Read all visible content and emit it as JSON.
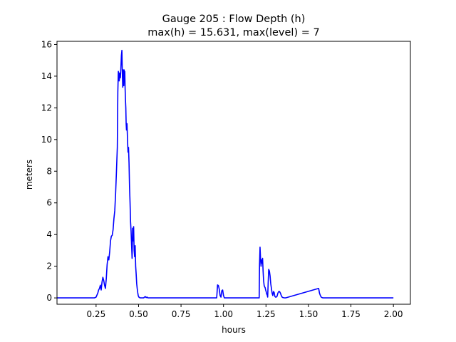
{
  "chart_data": {
    "type": "line",
    "title": "Gauge 205 : Flow Depth (h)",
    "subtitle": "max(h) =  15.631,    max(level) = 7",
    "xlabel": "hours",
    "ylabel": "meters",
    "xlim": [
      0.02,
      2.1
    ],
    "ylim": [
      -0.4,
      16.2
    ],
    "xticks": [
      0.25,
      0.5,
      0.75,
      1.0,
      1.25,
      1.5,
      1.75,
      2.0
    ],
    "xtick_labels": [
      "0.25",
      "0.50",
      "0.75",
      "1.00",
      "1.25",
      "1.50",
      "1.75",
      "2.00"
    ],
    "yticks": [
      0,
      2,
      4,
      6,
      8,
      10,
      12,
      14,
      16
    ],
    "ytick_labels": [
      "0",
      "2",
      "4",
      "6",
      "8",
      "10",
      "12",
      "14",
      "16"
    ],
    "grid": false,
    "colors": {
      "line": "#0000ff"
    },
    "series": [
      {
        "x": [
          0.02,
          0.24,
          0.25,
          0.26,
          0.265,
          0.27,
          0.275,
          0.28,
          0.285,
          0.29,
          0.295,
          0.3,
          0.305,
          0.31,
          0.315,
          0.32,
          0.325,
          0.33,
          0.335,
          0.34,
          0.345,
          0.35,
          0.355,
          0.36,
          0.365,
          0.37,
          0.375,
          0.378,
          0.381,
          0.384,
          0.386,
          0.388,
          0.39,
          0.393,
          0.396,
          0.399,
          0.402,
          0.405,
          0.407,
          0.409,
          0.411,
          0.413,
          0.415,
          0.417,
          0.419,
          0.421,
          0.423,
          0.425,
          0.427,
          0.429,
          0.432,
          0.435,
          0.438,
          0.441,
          0.444,
          0.447,
          0.45,
          0.453,
          0.456,
          0.459,
          0.462,
          0.465,
          0.468,
          0.471,
          0.474,
          0.477,
          0.48,
          0.483,
          0.486,
          0.489,
          0.492,
          0.495,
          0.498,
          0.502,
          0.506,
          0.51,
          0.52,
          0.53,
          0.535,
          0.54,
          0.545,
          0.55,
          0.555,
          0.96,
          0.965,
          0.97,
          0.975,
          0.98,
          0.985,
          0.99,
          0.995,
          1.0,
          1.005,
          1.21,
          1.212,
          1.215,
          1.218,
          1.221,
          1.224,
          1.227,
          1.23,
          1.233,
          1.236,
          1.239,
          1.242,
          1.245,
          1.248,
          1.251,
          1.254,
          1.257,
          1.26,
          1.263,
          1.266,
          1.27,
          1.274,
          1.278,
          1.282,
          1.286,
          1.29,
          1.294,
          1.298,
          1.302,
          1.306,
          1.31,
          1.315,
          1.32,
          1.325,
          1.33,
          1.335,
          1.34,
          1.345,
          1.35,
          1.355,
          1.36,
          1.365,
          1.56,
          1.565,
          1.57,
          1.575,
          1.58,
          1.585,
          2.0
        ],
        "y": [
          0,
          0,
          0.05,
          0.3,
          0.5,
          0.6,
          0.8,
          0.5,
          1.0,
          1.3,
          1.1,
          0.8,
          0.6,
          1.2,
          2.1,
          2.6,
          2.4,
          2.9,
          3.6,
          3.9,
          3.95,
          4.3,
          5.0,
          5.5,
          6.6,
          8.0,
          9.5,
          13.0,
          14.3,
          14.1,
          13.7,
          13.9,
          14.2,
          13.9,
          14.5,
          15.3,
          15.63,
          14.0,
          13.3,
          14.4,
          14.2,
          13.4,
          14.4,
          13.9,
          14.3,
          13.2,
          12.5,
          12.0,
          11.0,
          10.6,
          11.0,
          10.0,
          9.2,
          9.5,
          8.5,
          7.0,
          6.0,
          4.8,
          4.2,
          3.3,
          2.5,
          4.4,
          3.6,
          4.5,
          3.0,
          2.6,
          3.3,
          2.0,
          1.5,
          0.9,
          0.6,
          0.35,
          0.15,
          0.05,
          0.02,
          0,
          0,
          0,
          0.05,
          0.08,
          0.02,
          0.05,
          0,
          0,
          0.82,
          0.78,
          0.55,
          0.15,
          0.05,
          0.45,
          0.5,
          0.15,
          0,
          0,
          2.1,
          3.2,
          2.5,
          2.0,
          2.4,
          2.2,
          2.5,
          1.7,
          1.1,
          0.8,
          0.7,
          0.65,
          0.5,
          0.4,
          0.25,
          0.2,
          0.05,
          1.0,
          1.8,
          1.7,
          1.4,
          0.9,
          0.6,
          0.3,
          0.15,
          0.4,
          0.35,
          0.1,
          0.05,
          0.05,
          0.1,
          0.3,
          0.4,
          0.4,
          0.3,
          0.15,
          0.05,
          0.02,
          0.01,
          0,
          0,
          0.6,
          0.3,
          0.15,
          0.05,
          0.02,
          0,
          0
        ]
      }
    ]
  }
}
